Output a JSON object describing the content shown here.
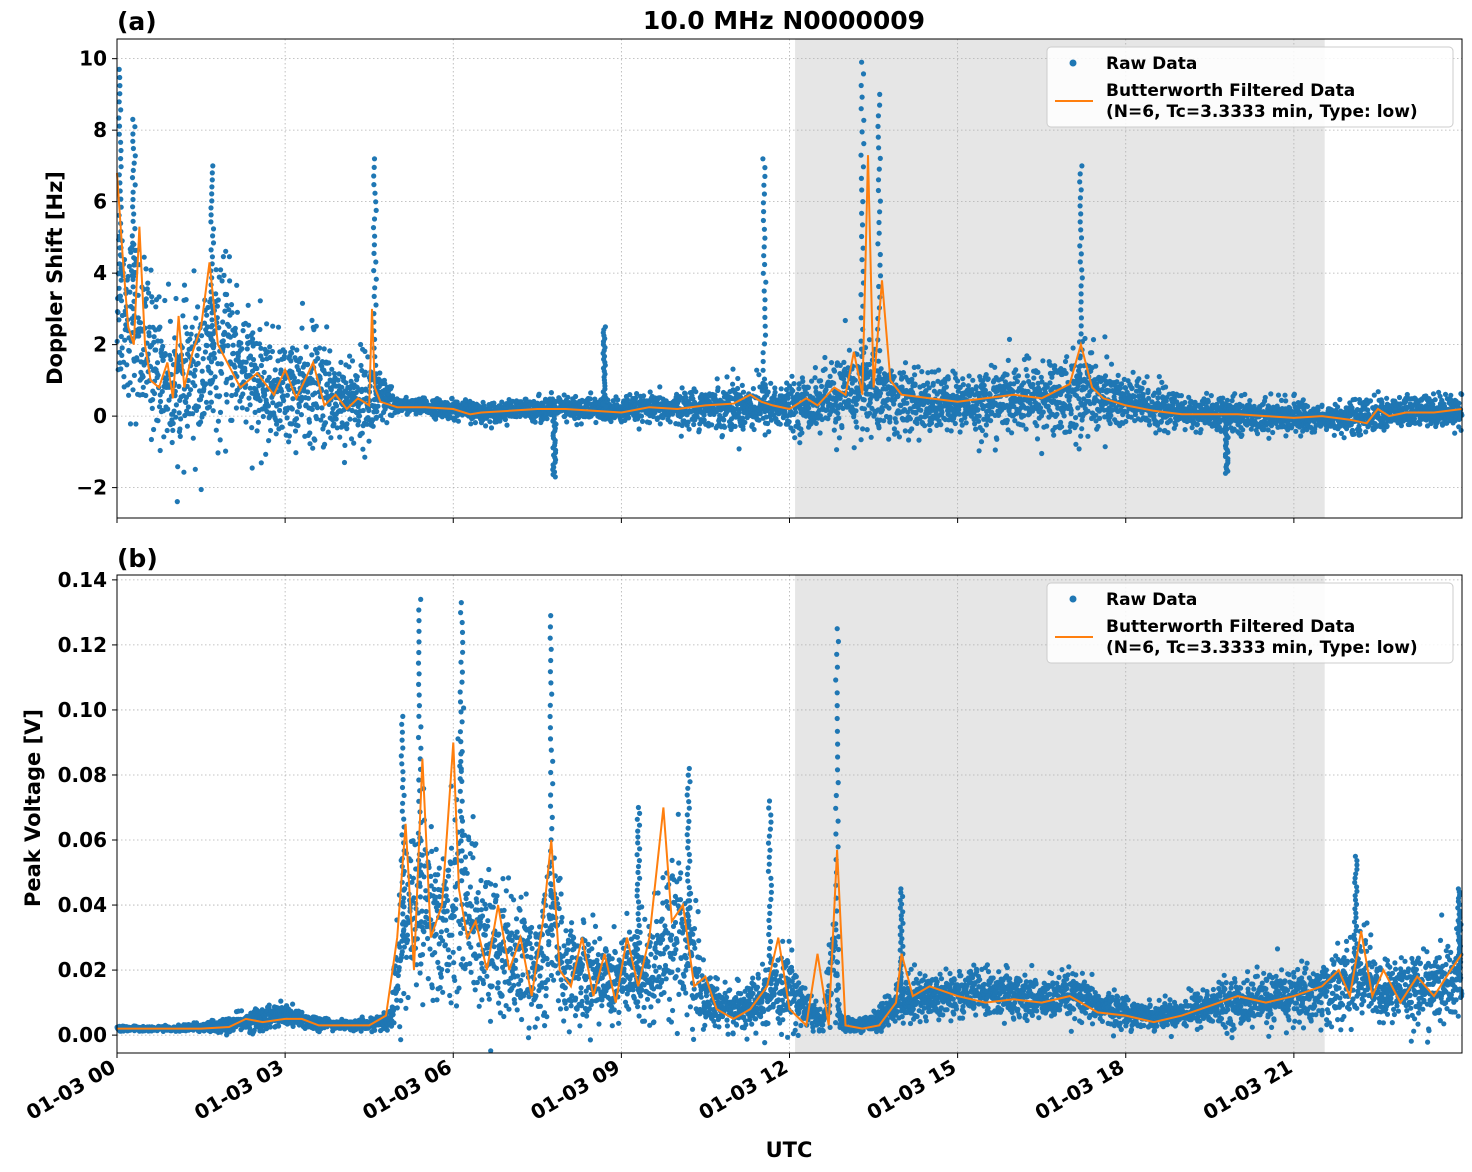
{
  "title": "10.0 MHz N0000009",
  "xlabel": "UTC",
  "colors": {
    "raw": "#1f77b4",
    "filtered": "#ff7f0e",
    "shade": "#e6e6e6"
  },
  "legend": {
    "raw": "Raw Data",
    "filtered_line1": "Butterworth Filtered Data",
    "filtered_line2": "(N=6, Tc=3.3333 min, Type: low)"
  },
  "chart_data": [
    {
      "type": "scatter",
      "panel_label": "(a)",
      "ylabel": "Doppler Shift [Hz]",
      "xlim_hours": [
        0,
        24
      ],
      "ylim": [
        -2.85,
        10.55
      ],
      "yticks": [
        -2,
        0,
        2,
        4,
        6,
        8,
        10
      ],
      "ytick_labels": [
        "−2",
        "0",
        "2",
        "4",
        "6",
        "8",
        "10"
      ],
      "xticks_hours": [
        0,
        3,
        6,
        9,
        12,
        15,
        18,
        21
      ],
      "xtick_labels": [
        "01-03 00",
        "01-03 03",
        "01-03 06",
        "01-03 09",
        "01-03 12",
        "01-03 15",
        "01-03 18",
        "01-03 21"
      ],
      "shaded_interval_hours": [
        12.1,
        21.55
      ],
      "grid": true,
      "legend_position": "top-right",
      "series": [
        {
          "name": "Raw Data",
          "kind": "points",
          "x_hours": [
            0,
            0.5,
            1,
            1.5,
            2,
            2.5,
            3,
            3.5,
            4,
            4.5,
            5,
            5.5,
            6,
            6.5,
            7,
            7.5,
            8,
            8.5,
            9,
            9.5,
            10,
            10.5,
            11,
            11.5,
            12,
            12.5,
            13,
            13.3,
            13.5,
            14,
            14.5,
            15,
            15.5,
            16,
            16.5,
            17,
            17.3,
            17.5,
            18,
            18.5,
            19,
            19.5,
            20,
            20.5,
            21,
            21.5,
            22,
            22.5,
            23,
            23.5,
            24
          ],
          "center": [
            3.5,
            2.0,
            0.8,
            1.2,
            2.0,
            0.8,
            0.7,
            0.8,
            0.5,
            0.5,
            0.3,
            0.25,
            0.2,
            0.1,
            0.15,
            0.2,
            0.2,
            0.2,
            0.15,
            0.2,
            0.2,
            0.25,
            0.3,
            0.3,
            0.25,
            0.4,
            0.6,
            0.8,
            0.7,
            0.4,
            0.35,
            0.35,
            0.4,
            0.45,
            0.5,
            0.6,
            0.8,
            0.6,
            0.4,
            0.25,
            0.1,
            0.05,
            0.05,
            0.0,
            0.0,
            -0.05,
            -0.05,
            0.05,
            0.1,
            0.15,
            0.2
          ],
          "spread": [
            3.0,
            2.5,
            2.0,
            2.5,
            2.5,
            1.8,
            1.5,
            1.8,
            1.4,
            1.4,
            0.25,
            0.25,
            0.3,
            0.3,
            0.3,
            0.35,
            0.4,
            0.4,
            0.4,
            0.4,
            0.5,
            0.6,
            0.8,
            0.8,
            0.7,
            0.9,
            1.3,
            1.5,
            1.3,
            1.0,
            0.9,
            0.9,
            1.0,
            1.0,
            1.1,
            1.3,
            1.5,
            1.2,
            0.9,
            0.7,
            0.5,
            0.5,
            0.5,
            0.5,
            0.5,
            0.4,
            0.5,
            0.5,
            0.5,
            0.5,
            0.5
          ],
          "peaks": [
            [
              0.05,
              9.7
            ],
            [
              0.3,
              8.3
            ],
            [
              1.7,
              7.0
            ],
            [
              4.6,
              7.2
            ],
            [
              11.55,
              7.2
            ],
            [
              13.3,
              9.9
            ],
            [
              13.6,
              9.0
            ],
            [
              17.2,
              7.0
            ],
            [
              8.7,
              2.5
            ],
            [
              7.8,
              -1.7
            ],
            [
              19.8,
              -1.6
            ]
          ]
        },
        {
          "name": "Butterworth Filtered Data\n(N=6, Tc=3.3333 min, Type: low)",
          "kind": "line",
          "x_hours": [
            0,
            0.1,
            0.2,
            0.3,
            0.4,
            0.5,
            0.6,
            0.75,
            0.9,
            1.0,
            1.1,
            1.2,
            1.35,
            1.5,
            1.65,
            1.8,
            2.0,
            2.2,
            2.5,
            2.8,
            3.0,
            3.2,
            3.5,
            3.7,
            3.9,
            4.1,
            4.3,
            4.5,
            4.55,
            4.6,
            4.7,
            5.0,
            5.5,
            6.0,
            6.3,
            6.5,
            7.0,
            7.5,
            8.0,
            8.5,
            9.0,
            9.5,
            10.0,
            10.5,
            11.0,
            11.3,
            11.5,
            11.7,
            12.0,
            12.3,
            12.5,
            12.8,
            13.0,
            13.15,
            13.3,
            13.4,
            13.5,
            13.65,
            13.8,
            14.0,
            14.5,
            15.0,
            15.5,
            16.0,
            16.5,
            17.0,
            17.2,
            17.4,
            17.6,
            18.0,
            18.5,
            19.0,
            19.5,
            20.0,
            20.5,
            21.0,
            21.5,
            22.0,
            22.3,
            22.5,
            22.7,
            23.0,
            23.5,
            24.0
          ],
          "y": [
            6.8,
            4.5,
            2.5,
            2.0,
            5.3,
            2.0,
            1.0,
            0.8,
            1.5,
            0.5,
            2.8,
            0.8,
            1.8,
            2.5,
            4.3,
            2.0,
            1.4,
            0.8,
            1.2,
            0.6,
            1.3,
            0.5,
            1.5,
            0.3,
            0.6,
            0.2,
            0.5,
            0.3,
            3.0,
            0.8,
            0.4,
            0.25,
            0.25,
            0.2,
            0.05,
            0.1,
            0.15,
            0.2,
            0.2,
            0.15,
            0.1,
            0.25,
            0.2,
            0.3,
            0.35,
            0.6,
            0.4,
            0.3,
            0.2,
            0.5,
            0.3,
            0.8,
            0.6,
            1.8,
            0.6,
            7.3,
            0.8,
            3.8,
            1.0,
            0.6,
            0.5,
            0.4,
            0.5,
            0.6,
            0.5,
            0.9,
            2.0,
            0.8,
            0.5,
            0.3,
            0.15,
            0.05,
            0.05,
            0.05,
            0.0,
            -0.05,
            0.0,
            -0.1,
            -0.2,
            0.2,
            0.0,
            0.1,
            0.1,
            0.2
          ]
        }
      ]
    },
    {
      "type": "scatter",
      "panel_label": "(b)",
      "ylabel": "Peak Voltage [V]",
      "xlim_hours": [
        0,
        24
      ],
      "ylim": [
        -0.0055,
        0.1415
      ],
      "yticks": [
        0.0,
        0.02,
        0.04,
        0.06,
        0.08,
        0.1,
        0.12,
        0.14
      ],
      "ytick_labels": [
        "0.00",
        "0.02",
        "0.04",
        "0.06",
        "0.08",
        "0.10",
        "0.12",
        "0.14"
      ],
      "xticks_hours": [
        0,
        3,
        6,
        9,
        12,
        15,
        18,
        21
      ],
      "xtick_labels": [
        "01-03 00",
        "01-03 03",
        "01-03 06",
        "01-03 09",
        "01-03 12",
        "01-03 15",
        "01-03 18",
        "01-03 21"
      ],
      "shaded_interval_hours": [
        12.1,
        21.55
      ],
      "grid": true,
      "legend_position": "top-right",
      "series": [
        {
          "name": "Raw Data",
          "kind": "points",
          "x_hours": [
            0,
            1,
            2,
            2.5,
            3,
            3.5,
            4,
            4.5,
            4.9,
            5.0,
            5.3,
            5.5,
            5.8,
            6.1,
            6.5,
            7.0,
            7.5,
            7.8,
            8.0,
            8.5,
            9.0,
            9.5,
            9.8,
            10.0,
            10.3,
            10.5,
            11.0,
            11.5,
            12.0,
            12.3,
            12.6,
            12.8,
            12.9,
            13.2,
            13.5,
            13.7,
            14.0,
            14.5,
            15.0,
            15.5,
            16.0,
            16.5,
            17.0,
            17.5,
            18.0,
            18.5,
            19.0,
            19.5,
            20.0,
            20.5,
            21.0,
            21.5,
            22.0,
            22.3,
            22.5,
            23.0,
            23.5,
            24.0
          ],
          "center": [
            0.002,
            0.002,
            0.003,
            0.005,
            0.006,
            0.004,
            0.003,
            0.003,
            0.005,
            0.025,
            0.04,
            0.045,
            0.03,
            0.05,
            0.03,
            0.025,
            0.02,
            0.035,
            0.02,
            0.018,
            0.018,
            0.02,
            0.03,
            0.035,
            0.02,
            0.01,
            0.008,
            0.01,
            0.015,
            0.008,
            0.004,
            0.025,
            0.004,
            0.003,
            0.004,
            0.006,
            0.012,
            0.012,
            0.013,
            0.013,
            0.012,
            0.011,
            0.012,
            0.009,
            0.007,
            0.006,
            0.007,
            0.009,
            0.01,
            0.011,
            0.012,
            0.013,
            0.016,
            0.02,
            0.012,
            0.015,
            0.014,
            0.018
          ],
          "spread": [
            0.0008,
            0.0008,
            0.0025,
            0.004,
            0.004,
            0.0025,
            0.0015,
            0.0015,
            0.004,
            0.02,
            0.03,
            0.035,
            0.025,
            0.04,
            0.025,
            0.022,
            0.018,
            0.03,
            0.018,
            0.015,
            0.015,
            0.018,
            0.025,
            0.028,
            0.018,
            0.009,
            0.007,
            0.009,
            0.013,
            0.007,
            0.003,
            0.02,
            0.003,
            0.002,
            0.003,
            0.005,
            0.008,
            0.008,
            0.008,
            0.008,
            0.008,
            0.007,
            0.008,
            0.006,
            0.005,
            0.004,
            0.005,
            0.007,
            0.008,
            0.009,
            0.01,
            0.011,
            0.013,
            0.015,
            0.01,
            0.012,
            0.012,
            0.015
          ],
          "peaks": [
            [
              5.4,
              0.134
            ],
            [
              6.15,
              0.133
            ],
            [
              7.75,
              0.129
            ],
            [
              12.85,
              0.125
            ],
            [
              5.1,
              0.098
            ],
            [
              10.2,
              0.082
            ],
            [
              11.65,
              0.072
            ],
            [
              9.3,
              0.07
            ],
            [
              22.1,
              0.055
            ],
            [
              14.0,
              0.045
            ],
            [
              23.95,
              0.045
            ]
          ]
        },
        {
          "name": "Butterworth Filtered Data\n(N=6, Tc=3.3333 min, Type: low)",
          "kind": "line",
          "x_hours": [
            0,
            0.5,
            1,
            1.5,
            2,
            2.3,
            2.6,
            3.0,
            3.3,
            3.6,
            4.0,
            4.5,
            4.8,
            5.0,
            5.15,
            5.3,
            5.45,
            5.6,
            5.8,
            6.0,
            6.1,
            6.25,
            6.4,
            6.6,
            6.8,
            7.0,
            7.2,
            7.4,
            7.6,
            7.75,
            7.9,
            8.1,
            8.3,
            8.5,
            8.7,
            8.9,
            9.1,
            9.3,
            9.5,
            9.75,
            9.9,
            10.1,
            10.3,
            10.5,
            10.7,
            11.0,
            11.3,
            11.6,
            11.8,
            12.0,
            12.3,
            12.5,
            12.7,
            12.85,
            13.0,
            13.3,
            13.6,
            13.9,
            14.0,
            14.2,
            14.5,
            15.0,
            15.5,
            16.0,
            16.5,
            17.0,
            17.5,
            18.0,
            18.5,
            19.0,
            19.5,
            20.0,
            20.5,
            21.0,
            21.5,
            21.8,
            22.0,
            22.2,
            22.4,
            22.6,
            22.9,
            23.2,
            23.5,
            23.8,
            24.0
          ],
          "y": [
            0.002,
            0.002,
            0.002,
            0.002,
            0.0025,
            0.005,
            0.004,
            0.005,
            0.005,
            0.003,
            0.003,
            0.003,
            0.006,
            0.03,
            0.065,
            0.02,
            0.085,
            0.03,
            0.04,
            0.09,
            0.045,
            0.03,
            0.035,
            0.02,
            0.04,
            0.02,
            0.03,
            0.012,
            0.035,
            0.06,
            0.02,
            0.015,
            0.03,
            0.012,
            0.025,
            0.01,
            0.03,
            0.015,
            0.03,
            0.07,
            0.035,
            0.04,
            0.015,
            0.018,
            0.008,
            0.005,
            0.008,
            0.015,
            0.03,
            0.008,
            0.003,
            0.025,
            0.003,
            0.057,
            0.003,
            0.002,
            0.003,
            0.01,
            0.025,
            0.012,
            0.015,
            0.012,
            0.01,
            0.011,
            0.01,
            0.012,
            0.007,
            0.006,
            0.004,
            0.006,
            0.009,
            0.012,
            0.01,
            0.012,
            0.015,
            0.02,
            0.012,
            0.032,
            0.012,
            0.02,
            0.01,
            0.018,
            0.012,
            0.02,
            0.025
          ]
        }
      ]
    }
  ]
}
